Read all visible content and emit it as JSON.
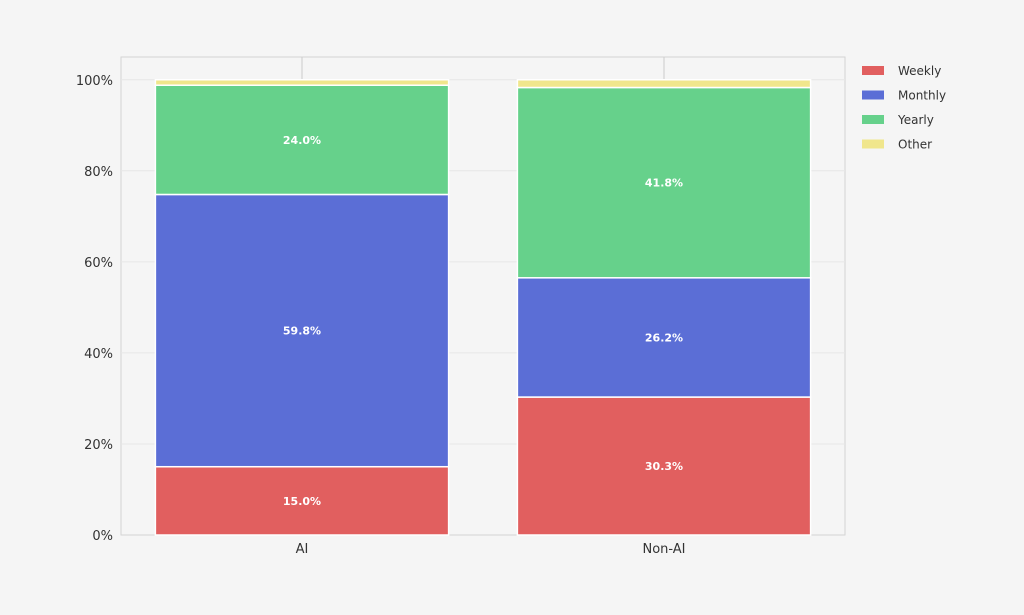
{
  "chart_data": {
    "type": "bar",
    "stacked": true,
    "title": "",
    "xlabel": "",
    "ylabel": "",
    "categories": [
      "AI",
      "Non-AI"
    ],
    "ylim": [
      0,
      105
    ],
    "yticks": [
      0,
      20,
      40,
      60,
      80,
      100
    ],
    "ytick_labels": [
      "0%",
      "20%",
      "40%",
      "60%",
      "80%",
      "100%"
    ],
    "grid": true,
    "legend_position": "right",
    "series": [
      {
        "name": "Weekly",
        "color": "#e15f5f",
        "values": [
          15.0,
          30.3
        ],
        "labels": [
          "15.0%",
          "30.3%"
        ]
      },
      {
        "name": "Monthly",
        "color": "#5b6ed6",
        "values": [
          59.8,
          26.2
        ],
        "labels": [
          "59.8%",
          "26.2%"
        ]
      },
      {
        "name": "Yearly",
        "color": "#66d18b",
        "values": [
          24.0,
          41.8
        ],
        "labels": [
          "24.0%",
          "41.8%"
        ]
      },
      {
        "name": "Other",
        "color": "#f0e68c",
        "values": [
          1.2,
          1.7
        ],
        "labels": [
          "",
          ""
        ]
      }
    ]
  }
}
